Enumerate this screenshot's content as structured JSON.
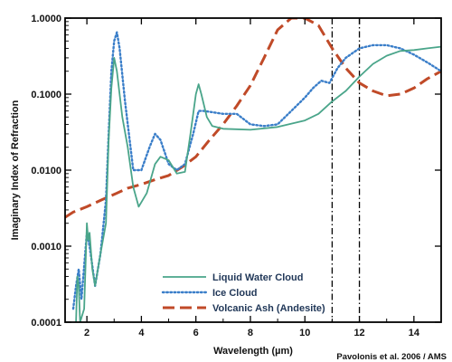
{
  "chart_data": {
    "type": "line",
    "xlabel": "Wavelength (µm)",
    "ylabel": "Imaginary Index of Refraction",
    "xlim": [
      1.2,
      15
    ],
    "ylim": [
      0.0001,
      1.0
    ],
    "yscale": "log",
    "grid": false,
    "legend_position": "bottom-center",
    "credit": "Pavolonis et al. 2006 / AMS",
    "x_ticks": [
      {
        "value": 2,
        "label": "2"
      },
      {
        "value": 4,
        "label": "4"
      },
      {
        "value": 6,
        "label": "6"
      },
      {
        "value": 8,
        "label": "8"
      },
      {
        "value": 10,
        "label": "10"
      },
      {
        "value": 12,
        "label": "12"
      },
      {
        "value": 14,
        "label": "14"
      }
    ],
    "y_ticks": [
      {
        "value": 0.0001,
        "label": "0.0001"
      },
      {
        "value": 0.001,
        "label": "0.0010"
      },
      {
        "value": 0.01,
        "label": "0.0100"
      },
      {
        "value": 0.1,
        "label": "0.1000"
      },
      {
        "value": 1.0,
        "label": "1.0000"
      }
    ],
    "vertical_lines": [
      11.0,
      12.0
    ],
    "series": [
      {
        "name": "Liquid Water Cloud",
        "color": "#4aa58a",
        "style": "solid",
        "points": [
          [
            1.6,
            0.0001
          ],
          [
            1.65,
            0.0004
          ],
          [
            1.7,
            0.0003
          ],
          [
            1.75,
            0.0001
          ],
          [
            1.9,
            0.00015
          ],
          [
            2.0,
            0.002
          ],
          [
            2.05,
            0.0012
          ],
          [
            2.1,
            0.0015
          ],
          [
            2.2,
            0.0005
          ],
          [
            2.3,
            0.0003
          ],
          [
            2.5,
            0.0008
          ],
          [
            2.7,
            0.002
          ],
          [
            2.8,
            0.025
          ],
          [
            2.9,
            0.12
          ],
          [
            3.0,
            0.3
          ],
          [
            3.1,
            0.2
          ],
          [
            3.3,
            0.05
          ],
          [
            3.5,
            0.02
          ],
          [
            3.7,
            0.006
          ],
          [
            3.9,
            0.0033
          ],
          [
            4.2,
            0.005
          ],
          [
            4.5,
            0.012
          ],
          [
            4.7,
            0.015
          ],
          [
            5.0,
            0.0135
          ],
          [
            5.3,
            0.009
          ],
          [
            5.6,
            0.0095
          ],
          [
            5.8,
            0.03
          ],
          [
            6.0,
            0.1
          ],
          [
            6.1,
            0.135
          ],
          [
            6.2,
            0.1
          ],
          [
            6.4,
            0.05
          ],
          [
            6.6,
            0.038
          ],
          [
            7.0,
            0.035
          ],
          [
            8.0,
            0.034
          ],
          [
            9.0,
            0.037
          ],
          [
            10.0,
            0.045
          ],
          [
            10.5,
            0.055
          ],
          [
            11.0,
            0.08
          ],
          [
            11.5,
            0.11
          ],
          [
            12.0,
            0.17
          ],
          [
            12.5,
            0.25
          ],
          [
            13.0,
            0.32
          ],
          [
            13.5,
            0.37
          ],
          [
            14.0,
            0.38
          ],
          [
            14.5,
            0.4
          ],
          [
            15.0,
            0.42
          ]
        ]
      },
      {
        "name": "Ice Cloud",
        "color": "#3a7ec9",
        "style": "dotted",
        "points": [
          [
            1.5,
            0.00015
          ],
          [
            1.6,
            0.0003
          ],
          [
            1.7,
            0.0005
          ],
          [
            1.8,
            0.0002
          ],
          [
            2.0,
            0.0015
          ],
          [
            2.1,
            0.001
          ],
          [
            2.3,
            0.0003
          ],
          [
            2.5,
            0.0008
          ],
          [
            2.7,
            0.004
          ],
          [
            2.8,
            0.03
          ],
          [
            2.9,
            0.2
          ],
          [
            3.0,
            0.5
          ],
          [
            3.1,
            0.65
          ],
          [
            3.2,
            0.4
          ],
          [
            3.4,
            0.08
          ],
          [
            3.7,
            0.01
          ],
          [
            4.0,
            0.01
          ],
          [
            4.3,
            0.02
          ],
          [
            4.5,
            0.03
          ],
          [
            4.7,
            0.025
          ],
          [
            5.0,
            0.012
          ],
          [
            5.3,
            0.01
          ],
          [
            5.6,
            0.012
          ],
          [
            5.9,
            0.03
          ],
          [
            6.1,
            0.06
          ],
          [
            6.3,
            0.06
          ],
          [
            7.0,
            0.055
          ],
          [
            7.5,
            0.055
          ],
          [
            8.0,
            0.04
          ],
          [
            8.5,
            0.038
          ],
          [
            9.0,
            0.04
          ],
          [
            9.5,
            0.06
          ],
          [
            10.0,
            0.09
          ],
          [
            10.3,
            0.12
          ],
          [
            10.6,
            0.15
          ],
          [
            10.9,
            0.14
          ],
          [
            11.2,
            0.22
          ],
          [
            11.5,
            0.3
          ],
          [
            12.0,
            0.4
          ],
          [
            12.5,
            0.44
          ],
          [
            13.0,
            0.44
          ],
          [
            13.5,
            0.4
          ],
          [
            14.0,
            0.33
          ],
          [
            14.5,
            0.26
          ],
          [
            15.0,
            0.2
          ]
        ]
      },
      {
        "name": "Volcanic Ash (Andesite)",
        "color": "#c04a28",
        "style": "dashed",
        "points": [
          [
            1.2,
            0.0024
          ],
          [
            1.5,
            0.0028
          ],
          [
            2.0,
            0.0033
          ],
          [
            2.5,
            0.004
          ],
          [
            3.0,
            0.0048
          ],
          [
            3.5,
            0.0058
          ],
          [
            4.0,
            0.0065
          ],
          [
            4.5,
            0.0075
          ],
          [
            5.0,
            0.0085
          ],
          [
            5.5,
            0.011
          ],
          [
            6.0,
            0.015
          ],
          [
            6.5,
            0.025
          ],
          [
            7.0,
            0.04
          ],
          [
            7.5,
            0.07
          ],
          [
            8.0,
            0.13
          ],
          [
            8.5,
            0.3
          ],
          [
            9.0,
            0.7
          ],
          [
            9.5,
            1.0
          ],
          [
            10.0,
            1.0
          ],
          [
            10.5,
            0.8
          ],
          [
            11.0,
            0.4
          ],
          [
            11.5,
            0.22
          ],
          [
            12.0,
            0.14
          ],
          [
            12.5,
            0.11
          ],
          [
            13.0,
            0.095
          ],
          [
            13.5,
            0.1
          ],
          [
            14.0,
            0.12
          ],
          [
            14.5,
            0.16
          ],
          [
            15.0,
            0.2
          ]
        ]
      }
    ]
  }
}
